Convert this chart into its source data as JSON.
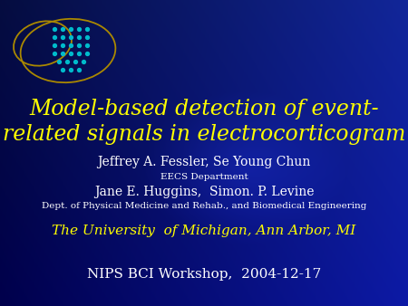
{
  "bg_color_topleft": "#000033",
  "bg_color_center": "#1144AA",
  "bg_color_bottom": "#0033AA",
  "title_line1": "Model-based detection of event-",
  "title_line2": "related signals in electrocorticogram",
  "title_color": "#FFFF00",
  "title_fontsize": 17,
  "author1": "Jeffrey A. Fessler, Se Young Chun",
  "dept1": "EECS Department",
  "author2": "Jane E. Huggins,  Simon. P. Levine",
  "dept2": "Dept. of Physical Medicine and Rehab., and Biomedical Engineering",
  "university": "The University  of Michigan, Ann Arbor, MI",
  "workshop": "NIPS BCI Workshop,  2004-12-17",
  "author_color": "#FFFFFF",
  "dept_color": "#FFFFFF",
  "university_color": "#FFFF00",
  "workshop_color": "#FFFFFF",
  "author_fontsize": 10,
  "dept_fontsize": 7.5,
  "university_fontsize": 11,
  "workshop_fontsize": 11,
  "brain_color": "#AA8800",
  "dot_color": "#00BBCC"
}
